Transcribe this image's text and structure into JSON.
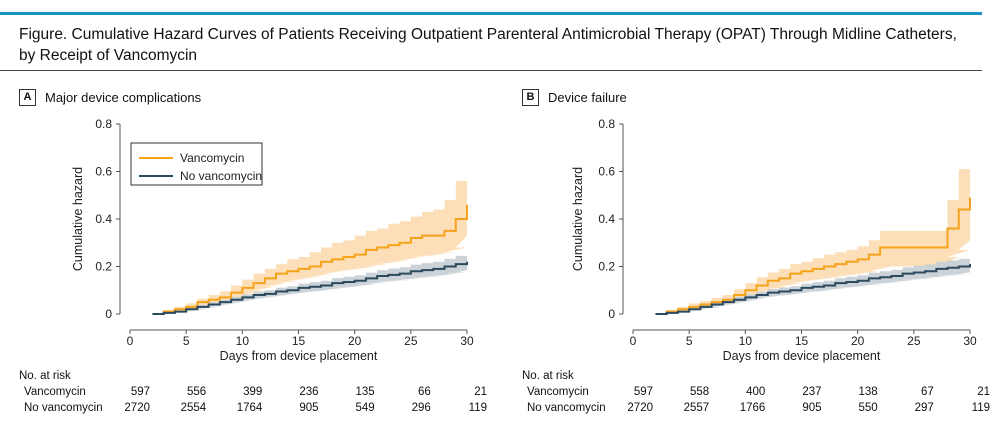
{
  "figure": {
    "title_line1": "Figure. Cumulative Hazard Curves of Patients Receiving Outpatient Parenteral Antimicrobial Therapy (OPAT) Through Midline Catheters,",
    "title_line2": "by Receipt of Vancomycin",
    "accent_color": "#1a93c4"
  },
  "colors": {
    "vancomycin": "#f5a31a",
    "vancomycin_band": "#fbd9ab",
    "no_vancomycin": "#2c4a5e",
    "no_vancomycin_band": "#c5ced4"
  },
  "chart_data": [
    {
      "type": "line",
      "panel_letter": "A",
      "title": "Major device complications",
      "xlabel": "Days from device placement",
      "ylabel": "Cumulative hazard",
      "xlim": [
        0,
        30
      ],
      "ylim": [
        0,
        0.8
      ],
      "x_ticks": [
        "0",
        "5",
        "10",
        "15",
        "20",
        "25",
        "30"
      ],
      "y_ticks": [
        "0",
        "0.2",
        "0.4",
        "0.6",
        "0.8"
      ],
      "legend": {
        "position": "top-left",
        "entries": [
          "Vancomycin",
          "No vancomycin"
        ]
      },
      "series": [
        {
          "name": "Vancomycin",
          "x": [
            2,
            3,
            4,
            5,
            6,
            7,
            8,
            9,
            10,
            11,
            12,
            13,
            14,
            15,
            16,
            17,
            18,
            19,
            20,
            21,
            22,
            23,
            24,
            25,
            26,
            27,
            28,
            29,
            30
          ],
          "y": [
            0,
            0.01,
            0.02,
            0.03,
            0.05,
            0.06,
            0.07,
            0.09,
            0.11,
            0.13,
            0.15,
            0.17,
            0.18,
            0.19,
            0.2,
            0.22,
            0.23,
            0.24,
            0.25,
            0.27,
            0.28,
            0.29,
            0.3,
            0.32,
            0.33,
            0.33,
            0.35,
            0.4,
            0.46
          ],
          "lower": [
            0,
            0.005,
            0.012,
            0.02,
            0.035,
            0.045,
            0.05,
            0.065,
            0.08,
            0.1,
            0.115,
            0.13,
            0.14,
            0.15,
            0.155,
            0.17,
            0.18,
            0.185,
            0.19,
            0.2,
            0.21,
            0.22,
            0.225,
            0.24,
            0.245,
            0.25,
            0.26,
            0.28,
            0.33
          ],
          "upper": [
            0,
            0.018,
            0.03,
            0.045,
            0.065,
            0.08,
            0.095,
            0.12,
            0.145,
            0.17,
            0.19,
            0.21,
            0.23,
            0.24,
            0.26,
            0.28,
            0.3,
            0.31,
            0.33,
            0.35,
            0.36,
            0.38,
            0.39,
            0.41,
            0.43,
            0.44,
            0.48,
            0.56,
            0.58
          ]
        },
        {
          "name": "No vancomycin",
          "x": [
            2,
            3,
            4,
            5,
            6,
            7,
            8,
            9,
            10,
            11,
            12,
            13,
            14,
            15,
            16,
            17,
            18,
            19,
            20,
            21,
            22,
            23,
            24,
            25,
            26,
            27,
            28,
            29,
            30
          ],
          "y": [
            0,
            0.005,
            0.01,
            0.02,
            0.03,
            0.04,
            0.05,
            0.06,
            0.07,
            0.08,
            0.085,
            0.095,
            0.1,
            0.11,
            0.115,
            0.12,
            0.13,
            0.135,
            0.14,
            0.15,
            0.16,
            0.165,
            0.17,
            0.18,
            0.185,
            0.19,
            0.2,
            0.21,
            0.22
          ],
          "lower": [
            0,
            0.002,
            0.006,
            0.014,
            0.022,
            0.03,
            0.04,
            0.048,
            0.057,
            0.066,
            0.07,
            0.079,
            0.083,
            0.092,
            0.096,
            0.1,
            0.109,
            0.113,
            0.117,
            0.126,
            0.135,
            0.139,
            0.143,
            0.152,
            0.156,
            0.16,
            0.168,
            0.175,
            0.185
          ],
          "upper": [
            0,
            0.008,
            0.014,
            0.026,
            0.038,
            0.05,
            0.06,
            0.072,
            0.083,
            0.094,
            0.1,
            0.111,
            0.117,
            0.128,
            0.134,
            0.14,
            0.151,
            0.157,
            0.163,
            0.174,
            0.185,
            0.191,
            0.197,
            0.208,
            0.214,
            0.22,
            0.232,
            0.245,
            0.255
          ]
        }
      ],
      "risk_table": {
        "label": "No. at risk",
        "rows": [
          {
            "name": "Vancomycin",
            "values": [
              "597",
              "556",
              "399",
              "236",
              "135",
              "66",
              "21"
            ]
          },
          {
            "name": "No vancomycin",
            "values": [
              "2720",
              "2554",
              "1764",
              "905",
              "549",
              "296",
              "119"
            ]
          }
        ]
      }
    },
    {
      "type": "line",
      "panel_letter": "B",
      "title": "Device failure",
      "xlabel": "Days from device placement",
      "ylabel": "Cumulative hazard",
      "xlim": [
        0,
        30
      ],
      "ylim": [
        0,
        0.8
      ],
      "x_ticks": [
        "0",
        "5",
        "10",
        "15",
        "20",
        "25",
        "30"
      ],
      "y_ticks": [
        "0",
        "0.2",
        "0.4",
        "0.6",
        "0.8"
      ],
      "legend": null,
      "series": [
        {
          "name": "Vancomycin",
          "x": [
            2,
            3,
            4,
            5,
            6,
            7,
            8,
            9,
            10,
            11,
            12,
            13,
            14,
            15,
            16,
            17,
            18,
            19,
            20,
            21,
            22,
            23,
            24,
            25,
            26,
            27,
            28,
            29,
            30
          ],
          "y": [
            0,
            0.01,
            0.02,
            0.03,
            0.04,
            0.05,
            0.06,
            0.08,
            0.1,
            0.12,
            0.14,
            0.15,
            0.17,
            0.18,
            0.19,
            0.2,
            0.21,
            0.22,
            0.23,
            0.25,
            0.28,
            0.28,
            0.28,
            0.28,
            0.28,
            0.28,
            0.36,
            0.44,
            0.49
          ],
          "lower": [
            0,
            0.005,
            0.012,
            0.02,
            0.028,
            0.036,
            0.043,
            0.06,
            0.075,
            0.09,
            0.105,
            0.115,
            0.13,
            0.14,
            0.145,
            0.15,
            0.16,
            0.165,
            0.17,
            0.18,
            0.2,
            0.2,
            0.2,
            0.2,
            0.2,
            0.2,
            0.24,
            0.27,
            0.31
          ],
          "upper": [
            0,
            0.018,
            0.03,
            0.045,
            0.055,
            0.068,
            0.08,
            0.105,
            0.13,
            0.155,
            0.175,
            0.19,
            0.21,
            0.22,
            0.235,
            0.25,
            0.26,
            0.27,
            0.285,
            0.31,
            0.35,
            0.35,
            0.35,
            0.35,
            0.35,
            0.35,
            0.48,
            0.61,
            0.62
          ]
        },
        {
          "name": "No vancomycin",
          "x": [
            2,
            3,
            4,
            5,
            6,
            7,
            8,
            9,
            10,
            11,
            12,
            13,
            14,
            15,
            16,
            17,
            18,
            19,
            20,
            21,
            22,
            23,
            24,
            25,
            26,
            27,
            28,
            29,
            30
          ],
          "y": [
            0,
            0.005,
            0.01,
            0.02,
            0.03,
            0.04,
            0.05,
            0.06,
            0.07,
            0.08,
            0.09,
            0.095,
            0.1,
            0.11,
            0.115,
            0.12,
            0.13,
            0.135,
            0.14,
            0.15,
            0.155,
            0.16,
            0.17,
            0.175,
            0.18,
            0.19,
            0.195,
            0.2,
            0.21
          ],
          "lower": [
            0,
            0.002,
            0.006,
            0.014,
            0.022,
            0.03,
            0.04,
            0.048,
            0.057,
            0.066,
            0.075,
            0.079,
            0.083,
            0.092,
            0.096,
            0.1,
            0.109,
            0.113,
            0.117,
            0.126,
            0.13,
            0.134,
            0.143,
            0.147,
            0.151,
            0.16,
            0.164,
            0.168,
            0.176
          ],
          "upper": [
            0,
            0.008,
            0.014,
            0.026,
            0.038,
            0.05,
            0.06,
            0.072,
            0.083,
            0.094,
            0.105,
            0.111,
            0.117,
            0.128,
            0.134,
            0.14,
            0.151,
            0.157,
            0.163,
            0.174,
            0.18,
            0.186,
            0.197,
            0.203,
            0.209,
            0.22,
            0.226,
            0.232,
            0.244
          ]
        }
      ],
      "risk_table": {
        "label": "No. at risk",
        "rows": [
          {
            "name": "Vancomycin",
            "values": [
              "597",
              "558",
              "400",
              "237",
              "138",
              "67",
              "21"
            ]
          },
          {
            "name": "No vancomycin",
            "values": [
              "2720",
              "2557",
              "1766",
              "905",
              "550",
              "297",
              "119"
            ]
          }
        ]
      }
    }
  ]
}
